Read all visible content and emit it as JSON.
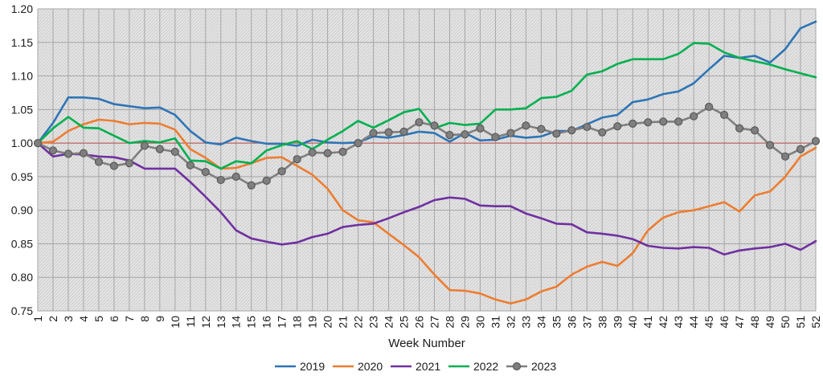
{
  "chart_data": {
    "type": "line",
    "title": "",
    "xlabel": "Week Number",
    "ylabel": "",
    "x": [
      1,
      2,
      3,
      4,
      5,
      6,
      7,
      8,
      9,
      10,
      11,
      12,
      13,
      14,
      15,
      16,
      17,
      18,
      19,
      20,
      21,
      22,
      23,
      24,
      25,
      26,
      27,
      28,
      29,
      30,
      31,
      32,
      33,
      34,
      35,
      36,
      37,
      38,
      39,
      40,
      41,
      42,
      43,
      44,
      45,
      46,
      47,
      48,
      49,
      50,
      51,
      52
    ],
    "x_ticks": [
      "1",
      "2",
      "3",
      "4",
      "5",
      "6",
      "7",
      "8",
      "9",
      "10",
      "11",
      "12",
      "13",
      "14",
      "15",
      "16",
      "17",
      "18",
      "19",
      "20",
      "21",
      "22",
      "23",
      "24",
      "25",
      "26",
      "27",
      "28",
      "29",
      "30",
      "31",
      "32",
      "33",
      "34",
      "35",
      "36",
      "37",
      "38",
      "39",
      "40",
      "41",
      "42",
      "43",
      "44",
      "45",
      "46",
      "47",
      "48",
      "49",
      "50",
      "51",
      "52"
    ],
    "ylim": [
      0.75,
      1.2
    ],
    "y_ticks": [
      "0.75",
      "0.80",
      "0.85",
      "0.90",
      "0.95",
      "1.00",
      "1.05",
      "1.10",
      "1.15",
      "1.20"
    ],
    "reference_line": {
      "y": 1.0,
      "color": "#c0504d"
    },
    "grid": true,
    "legend_position": "bottom",
    "series": [
      {
        "name": "2019",
        "color": "#2e75b6",
        "marker": "none",
        "values": [
          1.0,
          1.03,
          1.068,
          1.068,
          1.066,
          1.058,
          1.055,
          1.052,
          1.053,
          1.042,
          1.018,
          1.001,
          0.998,
          1.008,
          1.003,
          0.999,
          0.999,
          0.996,
          1.005,
          1.001,
          1.0,
          1.001,
          1.01,
          1.008,
          1.012,
          1.017,
          1.015,
          1.002,
          1.015,
          1.004,
          1.005,
          1.011,
          1.008,
          1.01,
          1.018,
          1.018,
          1.028,
          1.038,
          1.042,
          1.061,
          1.065,
          1.073,
          1.077,
          1.089,
          1.11,
          1.13,
          1.127,
          1.13,
          1.12,
          1.14,
          1.171,
          1.181
        ]
      },
      {
        "name": "2020",
        "color": "#ed7d31",
        "marker": "none",
        "values": [
          1.0,
          1.002,
          1.018,
          1.028,
          1.035,
          1.033,
          1.028,
          1.03,
          1.029,
          1.02,
          0.991,
          0.978,
          0.962,
          0.963,
          0.97,
          0.978,
          0.979,
          0.966,
          0.953,
          0.932,
          0.9,
          0.885,
          0.882,
          0.865,
          0.848,
          0.83,
          0.804,
          0.781,
          0.78,
          0.776,
          0.767,
          0.761,
          0.767,
          0.779,
          0.786,
          0.804,
          0.816,
          0.823,
          0.817,
          0.836,
          0.87,
          0.889,
          0.897,
          0.9,
          0.906,
          0.912,
          0.898,
          0.922,
          0.928,
          0.95,
          0.98,
          0.993
        ]
      },
      {
        "name": "2021",
        "color": "#7030a0",
        "marker": "none",
        "values": [
          1.0,
          0.98,
          0.984,
          0.983,
          0.98,
          0.979,
          0.974,
          0.962,
          0.962,
          0.962,
          0.942,
          0.92,
          0.897,
          0.87,
          0.858,
          0.853,
          0.849,
          0.852,
          0.86,
          0.865,
          0.875,
          0.878,
          0.88,
          0.888,
          0.897,
          0.905,
          0.915,
          0.919,
          0.917,
          0.907,
          0.906,
          0.906,
          0.895,
          0.888,
          0.88,
          0.879,
          0.867,
          0.865,
          0.862,
          0.857,
          0.847,
          0.844,
          0.843,
          0.845,
          0.844,
          0.834,
          0.84,
          0.843,
          0.845,
          0.85,
          0.841,
          0.854
        ]
      },
      {
        "name": "2022",
        "color": "#00b050",
        "marker": "none",
        "values": [
          1.0,
          1.022,
          1.039,
          1.023,
          1.022,
          1.011,
          1.0,
          1.003,
          1.001,
          1.007,
          0.974,
          0.973,
          0.962,
          0.973,
          0.97,
          0.989,
          0.997,
          1.003,
          0.991,
          1.005,
          1.018,
          1.033,
          1.023,
          1.034,
          1.046,
          1.051,
          1.022,
          1.03,
          1.027,
          1.029,
          1.05,
          1.05,
          1.052,
          1.067,
          1.069,
          1.078,
          1.102,
          1.107,
          1.118,
          1.125,
          1.125,
          1.125,
          1.133,
          1.149,
          1.148,
          1.135,
          1.127,
          1.122,
          1.117,
          1.11,
          1.104,
          1.098
        ]
      },
      {
        "name": "2023",
        "color": "#7f7f7f",
        "marker": "circle",
        "values": [
          1.0,
          0.989,
          0.984,
          0.985,
          0.972,
          0.966,
          0.97,
          0.996,
          0.991,
          0.987,
          0.967,
          0.957,
          0.945,
          0.95,
          0.937,
          0.944,
          0.958,
          0.976,
          0.986,
          0.985,
          0.987,
          1.0,
          1.015,
          1.016,
          1.017,
          1.031,
          1.026,
          1.012,
          1.013,
          1.022,
          1.009,
          1.015,
          1.026,
          1.021,
          1.014,
          1.019,
          1.024,
          1.016,
          1.025,
          1.029,
          1.031,
          1.032,
          1.032,
          1.04,
          1.054,
          1.042,
          1.022,
          1.019,
          0.997,
          0.98,
          0.991,
          1.003
        ]
      }
    ]
  }
}
